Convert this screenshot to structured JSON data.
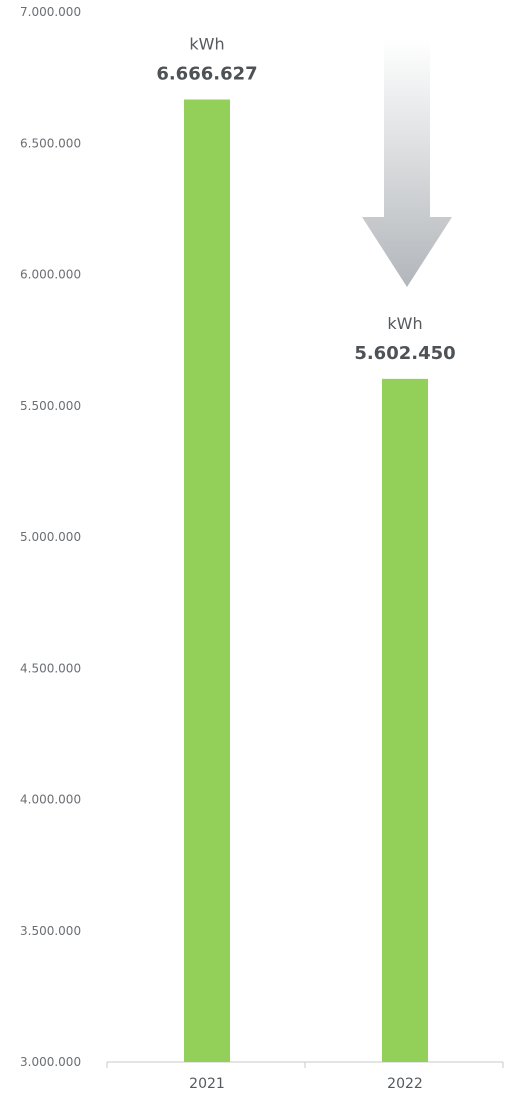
{
  "chart_data": {
    "type": "bar",
    "categories": [
      "2021",
      "2022"
    ],
    "values": [
      6666627,
      5602450
    ],
    "value_labels": [
      "6.666.627",
      "5.602.450"
    ],
    "unit": "kWh",
    "title": "",
    "xlabel": "",
    "ylabel": "",
    "ylim": [
      3000000,
      7000000
    ],
    "yticks": [
      3000000,
      3500000,
      4000000,
      4500000,
      5000000,
      5500000,
      6000000,
      6500000,
      7000000
    ],
    "ytick_labels": [
      "3.000.000",
      "3.500.000",
      "4.000.000",
      "4.500.000",
      "5.000.000",
      "5.500.000",
      "6.000.000",
      "6.500.000",
      "7.000.000"
    ],
    "grid": false,
    "legend": "none",
    "bar_color": "#92d05a",
    "annotation": {
      "icon": "down-arrow-icon",
      "meaning": "decrease"
    }
  }
}
